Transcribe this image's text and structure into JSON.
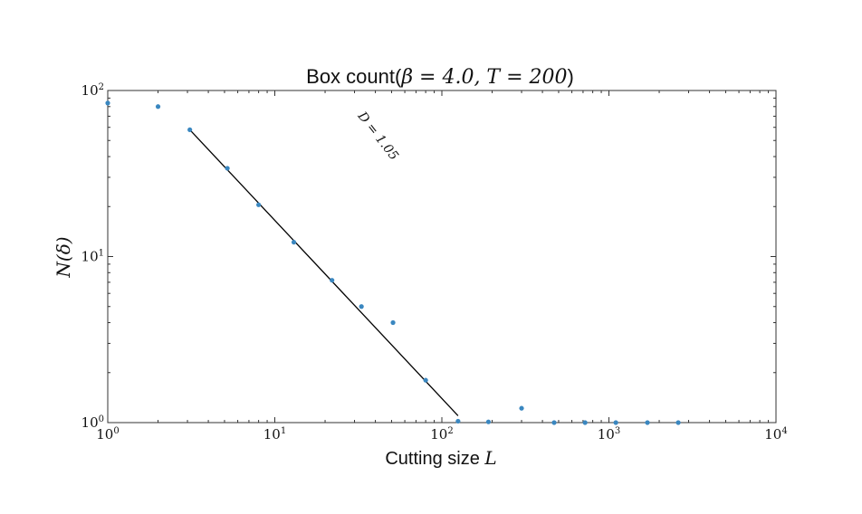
{
  "chart_data": {
    "type": "scatter",
    "title_prefix": "Box count(",
    "title_math": "β = 4.0, T = 200",
    "title_suffix": ")",
    "xlabel_prefix": "Cutting size ",
    "xlabel_math": "L",
    "ylabel": "N(δ)",
    "x_scale": "log",
    "y_scale": "log",
    "xlim": [
      1,
      10000
    ],
    "ylim": [
      1,
      100
    ],
    "x_ticks": [
      {
        "value": 1,
        "base": "10",
        "exp": "0"
      },
      {
        "value": 10,
        "base": "10",
        "exp": "1"
      },
      {
        "value": 100,
        "base": "10",
        "exp": "2"
      },
      {
        "value": 1000,
        "base": "10",
        "exp": "3"
      },
      {
        "value": 10000,
        "base": "10",
        "exp": "4"
      }
    ],
    "y_ticks": [
      {
        "value": 1,
        "base": "10",
        "exp": "0"
      },
      {
        "value": 10,
        "base": "10",
        "exp": "1"
      },
      {
        "value": 100,
        "base": "10",
        "exp": "2"
      }
    ],
    "grid": false,
    "marker_color": "#3a87c0",
    "line_color": "#000000",
    "points": [
      {
        "x": 1.0,
        "y": 84
      },
      {
        "x": 2.0,
        "y": 80
      },
      {
        "x": 3.1,
        "y": 58
      },
      {
        "x": 5.2,
        "y": 34
      },
      {
        "x": 8.0,
        "y": 20.5
      },
      {
        "x": 13.0,
        "y": 12.2
      },
      {
        "x": 22.0,
        "y": 7.2
      },
      {
        "x": 33.0,
        "y": 5.0
      },
      {
        "x": 51.0,
        "y": 4.0
      },
      {
        "x": 80.0,
        "y": 1.8
      },
      {
        "x": 125.0,
        "y": 1.02
      },
      {
        "x": 190.0,
        "y": 1.01
      },
      {
        "x": 300.0,
        "y": 1.22
      },
      {
        "x": 470.0,
        "y": 1.0
      },
      {
        "x": 720.0,
        "y": 1.0
      },
      {
        "x": 1100.0,
        "y": 1.0
      },
      {
        "x": 1700.0,
        "y": 1.0
      },
      {
        "x": 2600.0,
        "y": 1.0
      }
    ],
    "fit_line": {
      "x": [
        3.1,
        125.0
      ],
      "y": [
        58,
        1.1
      ]
    },
    "annotation": {
      "text": "D = 1.05",
      "x": 55,
      "y": 40
    }
  }
}
